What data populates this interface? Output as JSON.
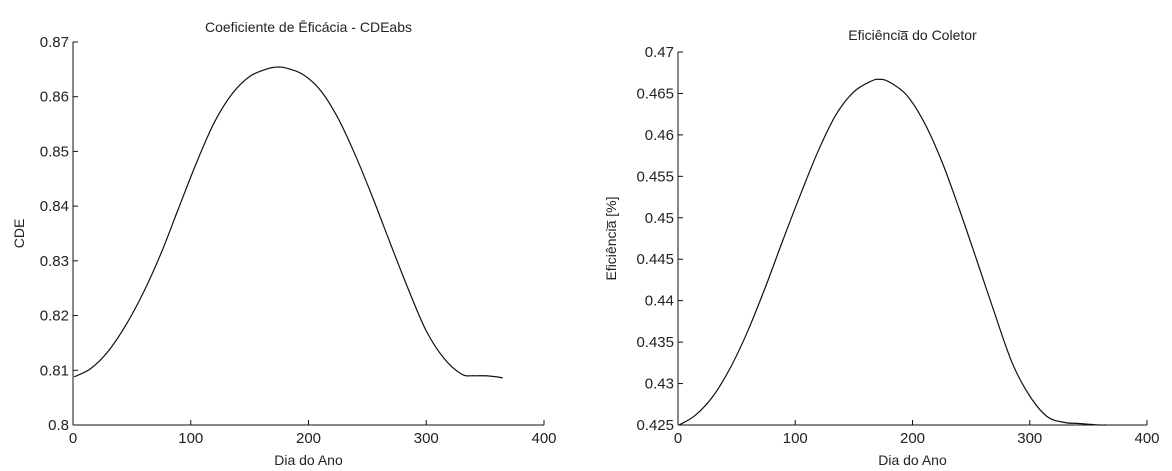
{
  "chart_data": [
    {
      "type": "line",
      "title": "Coeficiente de Ēficácia - CDEabs",
      "xlabel": "Dia do Ano",
      "ylabel": "CDE",
      "xlim": [
        0,
        400
      ],
      "ylim": [
        0.8,
        0.87
      ],
      "xticks": [
        "0",
        "100",
        "200",
        "300",
        "400"
      ],
      "yticks": [
        "0.8",
        "0.81",
        "0.82",
        "0.83",
        "0.84",
        "0.85",
        "0.86",
        "0.87"
      ],
      "grid": false,
      "series": [
        {
          "x": [
            1,
            15,
            30,
            45,
            60,
            75,
            90,
            105,
            120,
            135,
            150,
            165,
            172,
            180,
            195,
            210,
            225,
            240,
            255,
            270,
            285,
            300,
            315,
            330,
            340,
            350,
            360,
            365
          ],
          "y": [
            0.8088,
            0.8103,
            0.8135,
            0.8183,
            0.8243,
            0.8315,
            0.8398,
            0.848,
            0.8553,
            0.8605,
            0.8637,
            0.8651,
            0.8654,
            0.8653,
            0.8641,
            0.8612,
            0.8561,
            0.8492,
            0.8413,
            0.8329,
            0.8247,
            0.8172,
            0.8122,
            0.8093,
            0.809,
            0.809,
            0.8088,
            0.8086
          ]
        }
      ]
    },
    {
      "type": "line",
      "title": "Eficiência̅ do Coletor",
      "xlabel": "Dia do Ano",
      "ylabel": "Eficiência̅ [%]",
      "xlim": [
        0,
        400
      ],
      "ylim": [
        0.425,
        0.47
      ],
      "xticks": [
        "0",
        "100",
        "200",
        "300",
        "400"
      ],
      "yticks": [
        "0.425",
        "0.43",
        "0.435",
        "0.44",
        "0.445",
        "0.45",
        "0.455",
        "0.46",
        "0.465",
        "0.47"
      ],
      "grid": false,
      "series": [
        {
          "x": [
            1,
            15,
            30,
            45,
            60,
            75,
            90,
            105,
            120,
            135,
            150,
            165,
            172,
            180,
            195,
            210,
            225,
            240,
            255,
            270,
            285,
            300,
            315,
            330,
            340,
            350,
            360,
            365
          ],
          "y": [
            0.425,
            0.4262,
            0.4285,
            0.432,
            0.4365,
            0.4418,
            0.4475,
            0.453,
            0.4582,
            0.4625,
            0.4652,
            0.4665,
            0.4667,
            0.4664,
            0.4648,
            0.4615,
            0.4568,
            0.451,
            0.4448,
            0.4385,
            0.4325,
            0.4285,
            0.426,
            0.4253,
            0.4252,
            0.4251,
            0.425,
            0.425
          ]
        }
      ]
    }
  ]
}
